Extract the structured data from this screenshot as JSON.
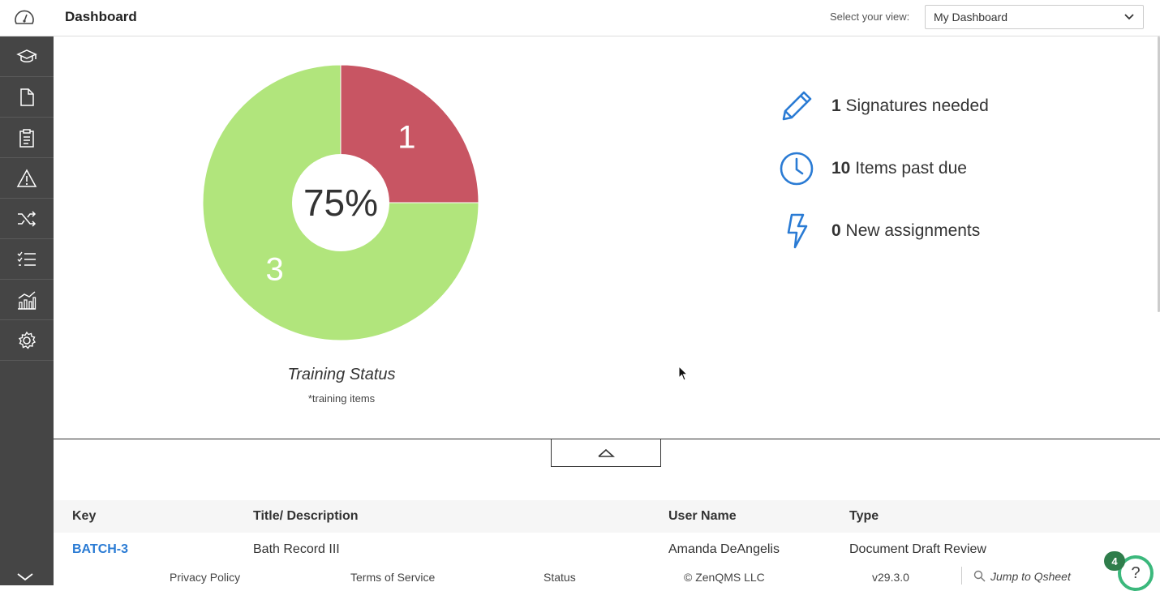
{
  "header": {
    "title": "Dashboard",
    "view_label": "Select your view:",
    "view_selected": "My Dashboard"
  },
  "sidebar": {
    "items": [
      {
        "icon": "graduation-cap-icon"
      },
      {
        "icon": "document-icon"
      },
      {
        "icon": "clipboard-icon"
      },
      {
        "icon": "warning-icon"
      },
      {
        "icon": "shuffle-icon"
      },
      {
        "icon": "checklist-icon"
      },
      {
        "icon": "analytics-icon"
      },
      {
        "icon": "gear-icon"
      }
    ]
  },
  "chart_data": {
    "type": "pie",
    "title": "Training Status",
    "subtitle": "*training items",
    "center_label": "75%",
    "slices": [
      {
        "label": "1",
        "value": 1,
        "color": "#c85563"
      },
      {
        "label": "3",
        "value": 3,
        "color": "#b1e57c"
      }
    ]
  },
  "stats": [
    {
      "icon": "pencil-icon",
      "count": "1",
      "label": "Signatures needed"
    },
    {
      "icon": "clock-icon",
      "count": "10",
      "label": "Items past due"
    },
    {
      "icon": "lightning-icon",
      "count": "0",
      "label": "New assignments"
    }
  ],
  "table": {
    "headers": [
      "Key",
      "Title/ Description",
      "User Name",
      "Type"
    ],
    "rows": [
      [
        "BATCH-3",
        "Bath Record III",
        "Amanda DeAngelis",
        "Document Draft Review"
      ]
    ]
  },
  "footer": {
    "privacy": "Privacy Policy",
    "terms": "Terms of Service",
    "status": "Status",
    "copyright": "© ZenQMS LLC",
    "version": "v29.3.0",
    "jump_placeholder": "Jump to Qsheet"
  },
  "help": {
    "badge_count": "4",
    "label": "?"
  },
  "colors": {
    "sidebar_bg": "#454545",
    "link": "#2a7bd4",
    "icon_blue": "#2a7bd4",
    "help_green": "#3bb87c"
  }
}
